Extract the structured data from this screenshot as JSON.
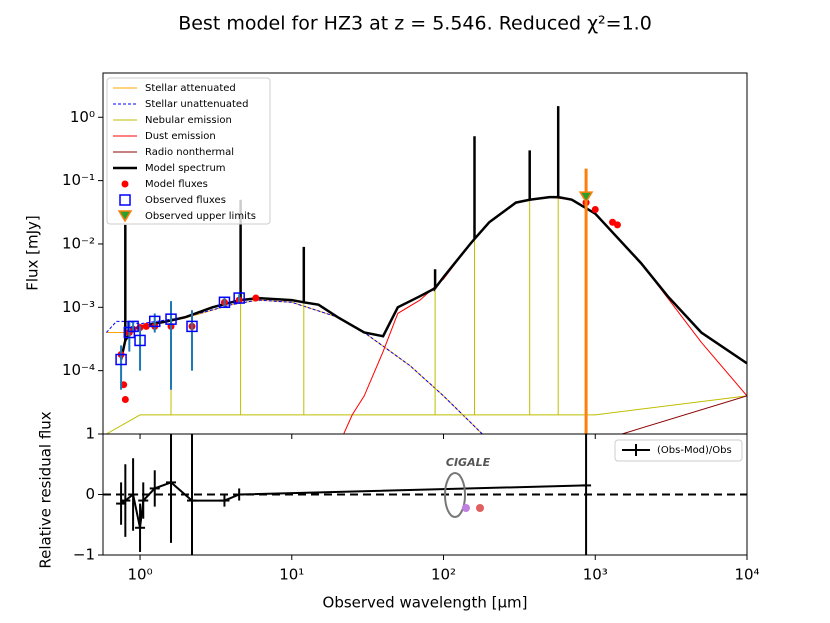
{
  "chart_data": [
    {
      "type": "line",
      "title": "Best model for HZ3        at z = 5.546. Reduced χ²=1.0",
      "ylabel": "Flux [mJy]",
      "log_x": true,
      "log_y": true,
      "xlim": [
        0.57,
        10000
      ],
      "ylim": [
        1e-05,
        5
      ],
      "yticks": [
        {
          "value": 0.0001,
          "label": "10⁻⁴"
        },
        {
          "value": 0.001,
          "label": "10⁻³"
        },
        {
          "value": 0.01,
          "label": "10⁻²"
        },
        {
          "value": 0.1,
          "label": "10⁻¹"
        },
        {
          "value": 1,
          "label": "10⁰"
        }
      ],
      "legend": "upper left",
      "series": [
        {
          "name": "Stellar attenuated",
          "type": "line",
          "style": "solid",
          "color": "#ffa500",
          "x": [
            0.6,
            0.8,
            1,
            2,
            4,
            6,
            10,
            20,
            30,
            60,
            100,
            180
          ],
          "values": [
            0.0004,
            0.0004,
            0.00048,
            0.00068,
            0.0011,
            0.0013,
            0.0012,
            0.0007,
            0.0004,
            0.00012,
            4e-05,
            1e-05
          ]
        },
        {
          "name": "Stellar unattenuated",
          "type": "line",
          "style": "dashed",
          "color": "#0000ff",
          "x": [
            0.6,
            0.7,
            0.8,
            1,
            2,
            4,
            6,
            10,
            20,
            30,
            60,
            100,
            180
          ],
          "values": [
            0.0004,
            0.0006,
            0.0006,
            0.00055,
            0.0007,
            0.0011,
            0.0013,
            0.0012,
            0.0007,
            0.0004,
            0.00012,
            4e-05,
            1e-05
          ]
        },
        {
          "name": "Nebular emission",
          "type": "line",
          "style": "solid",
          "color": "#bfbf00",
          "x": [
            0.6,
            1,
            1.6,
            1.6,
            1.6,
            3,
            4.6,
            4.6,
            4.6,
            10,
            12,
            12,
            12,
            30,
            88,
            88,
            88,
            160,
            160,
            160,
            370,
            370,
            370,
            570,
            570,
            570,
            1000,
            10000
          ],
          "values": [
            1e-05,
            2e-05,
            2e-05,
            0.0005,
            2e-05,
            2e-05,
            2e-05,
            0.03,
            2e-05,
            2e-05,
            2e-05,
            0.008,
            2e-05,
            2e-05,
            2e-05,
            0.003,
            2e-05,
            2e-05,
            0.3,
            2e-05,
            2e-05,
            0.1,
            2e-05,
            2e-05,
            0.9,
            2e-05,
            2e-05,
            4e-05
          ]
        },
        {
          "name": "Dust emission",
          "type": "line",
          "style": "solid",
          "color": "#ff0000",
          "x": [
            22,
            25,
            30,
            40,
            50,
            70,
            100,
            150,
            200,
            300,
            500,
            700,
            1000,
            2000,
            3000,
            5000,
            10000
          ],
          "values": [
            1e-05,
            2e-05,
            4e-05,
            0.0002,
            0.0008,
            0.0013,
            0.0028,
            0.01,
            0.022,
            0.045,
            0.055,
            0.05,
            0.03,
            0.005,
            0.0014,
            0.00028,
            4e-05
          ]
        },
        {
          "name": "Radio nonthermal",
          "type": "line",
          "style": "solid",
          "color": "#8b0000",
          "x": [
            1500,
            10000
          ],
          "values": [
            1e-05,
            4e-05
          ]
        },
        {
          "name": "Model spectrum",
          "type": "line",
          "style": "thick",
          "color": "#000000",
          "x": [
            0.75,
            0.8,
            0.8,
            0.8,
            0.9,
            1,
            1.5,
            2,
            3,
            4,
            4.6,
            4.6,
            4.6,
            6,
            10,
            12,
            12,
            12,
            15,
            20,
            30,
            40,
            50,
            70,
            88,
            88,
            88,
            100,
            150,
            160,
            160,
            160,
            200,
            300,
            370,
            370,
            370,
            500,
            570,
            570,
            570,
            700,
            1000,
            2000,
            3000,
            5000,
            10000
          ],
          "values": [
            0.00015,
            0.0003,
            0.02,
            0.0003,
            0.00045,
            0.0005,
            0.0006,
            0.0007,
            0.001,
            0.0012,
            0.0013,
            0.05,
            0.0013,
            0.0014,
            0.0013,
            0.0012,
            0.009,
            0.0012,
            0.0011,
            0.0007,
            0.0004,
            0.00035,
            0.001,
            0.0015,
            0.002,
            0.004,
            0.002,
            0.003,
            0.01,
            0.012,
            0.5,
            0.012,
            0.022,
            0.045,
            0.05,
            0.3,
            0.05,
            0.055,
            0.055,
            1.5,
            0.055,
            0.05,
            0.03,
            0.005,
            0.0015,
            0.0004,
            0.00013
          ]
        },
        {
          "name": "Model fluxes",
          "type": "scatter",
          "marker": "circle",
          "color": "#ff0000",
          "x": [
            0.75,
            0.78,
            0.8,
            0.85,
            0.9,
            1,
            1.1,
            1.25,
            1.6,
            2.2,
            3.6,
            4.5,
            5.8,
            870,
            1000,
            1300,
            1400
          ],
          "values": [
            0.00018,
            6e-05,
            3.5e-05,
            0.0004,
            0.00045,
            0.00048,
            0.0005,
            0.0005,
            0.0005,
            0.0005,
            0.0012,
            0.0013,
            0.0014,
            0.045,
            0.035,
            0.022,
            0.02
          ]
        },
        {
          "name": "Observed fluxes",
          "type": "scatter",
          "marker": "square",
          "color": "#0000ff",
          "error_color": "#1f77b4",
          "x": [
            0.75,
            0.85,
            0.9,
            1,
            1.25,
            1.6,
            2.2,
            3.6,
            4.5
          ],
          "values": [
            0.00015,
            0.0004,
            0.0005,
            0.0003,
            0.0006,
            0.00065,
            0.0005,
            0.0012,
            0.0014
          ],
          "errors": [
            0.0001,
            0.0002,
            0.0001,
            0.0002,
            0.0002,
            0.0006,
            0.0004,
            0.0002,
            0.0002
          ]
        },
        {
          "name": "Observed upper limits",
          "type": "scatter",
          "marker": "triangle",
          "color": "#2ca02c",
          "error_color": "#ff7f0e",
          "x": [
            870
          ],
          "values": [
            0.055
          ],
          "errors": [
            0.1
          ]
        }
      ]
    },
    {
      "type": "errorbar",
      "ylabel": "Relative residual flux",
      "xlabel": "Observed wavelength [μm]",
      "log_x": true,
      "xlim": [
        0.57,
        10000
      ],
      "ylim": [
        -1,
        1
      ],
      "xticks": [
        {
          "value": 1,
          "label": "10⁰"
        },
        {
          "value": 10,
          "label": "10¹"
        },
        {
          "value": 100,
          "label": "10²"
        },
        {
          "value": 1000,
          "label": "10³"
        },
        {
          "value": 10000,
          "label": "10⁴"
        }
      ],
      "yticks": [
        {
          "value": -1,
          "label": "−1"
        },
        0,
        1
      ],
      "legend": "upper right",
      "logo_text": "CIGALE",
      "series": [
        {
          "name": "(Obs-Mod)/Obs",
          "color": "#000000",
          "x": [
            0.75,
            0.8,
            0.9,
            1,
            1.05,
            1.25,
            1.6,
            2.2,
            3.6,
            4.5,
            870
          ],
          "values": [
            -0.15,
            -0.1,
            0.0,
            -0.55,
            -0.1,
            0.1,
            0.2,
            -0.1,
            -0.1,
            0.0,
            0.15
          ],
          "errors": [
            0.35,
            0.6,
            0.6,
            0.4,
            0.3,
            0.3,
            1.0,
            1.2,
            0.1,
            0.1,
            1.5
          ]
        }
      ]
    }
  ]
}
